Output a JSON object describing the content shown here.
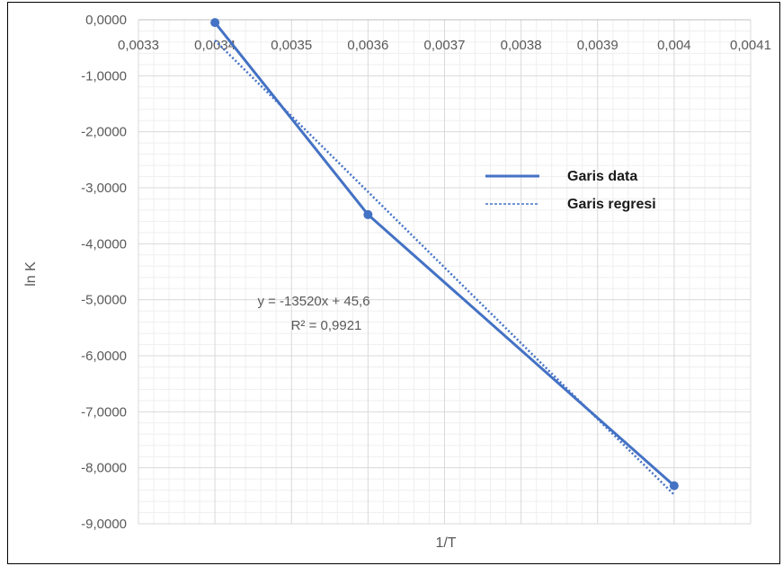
{
  "chart_data": {
    "type": "line",
    "title": "",
    "xlabel": "1/T",
    "ylabel": "ln K",
    "xlim": [
      0.0033,
      0.0041
    ],
    "ylim": [
      -9,
      0
    ],
    "x_ticks": [
      "0,0033",
      "0,0034",
      "0,0035",
      "0,0036",
      "0,0037",
      "0,0038",
      "0,0039",
      "0,004",
      "0,0041"
    ],
    "y_ticks": [
      "0,0000",
      "-1,0000",
      "-2,0000",
      "-3,0000",
      "-4,0000",
      "-5,0000",
      "-6,0000",
      "-7,0000",
      "-8,0000",
      "-9,0000"
    ],
    "grid": true,
    "minor_grid": true,
    "legend": "right",
    "series": [
      {
        "name": "Garis data",
        "style": "solid",
        "color": "#4472C4",
        "x": [
          0.0034,
          0.0036,
          0.004
        ],
        "y": [
          -0.05,
          -3.48,
          -8.32
        ]
      },
      {
        "name": "Garis regresi",
        "style": "dotted",
        "color": "#4472C4",
        "slope": -13520,
        "intercept": 45.6,
        "x": [
          0.0034,
          0.004
        ]
      }
    ],
    "annotations": {
      "equation": "y = -13520x + 45,6",
      "r_squared": "R² = 0,9921"
    }
  }
}
